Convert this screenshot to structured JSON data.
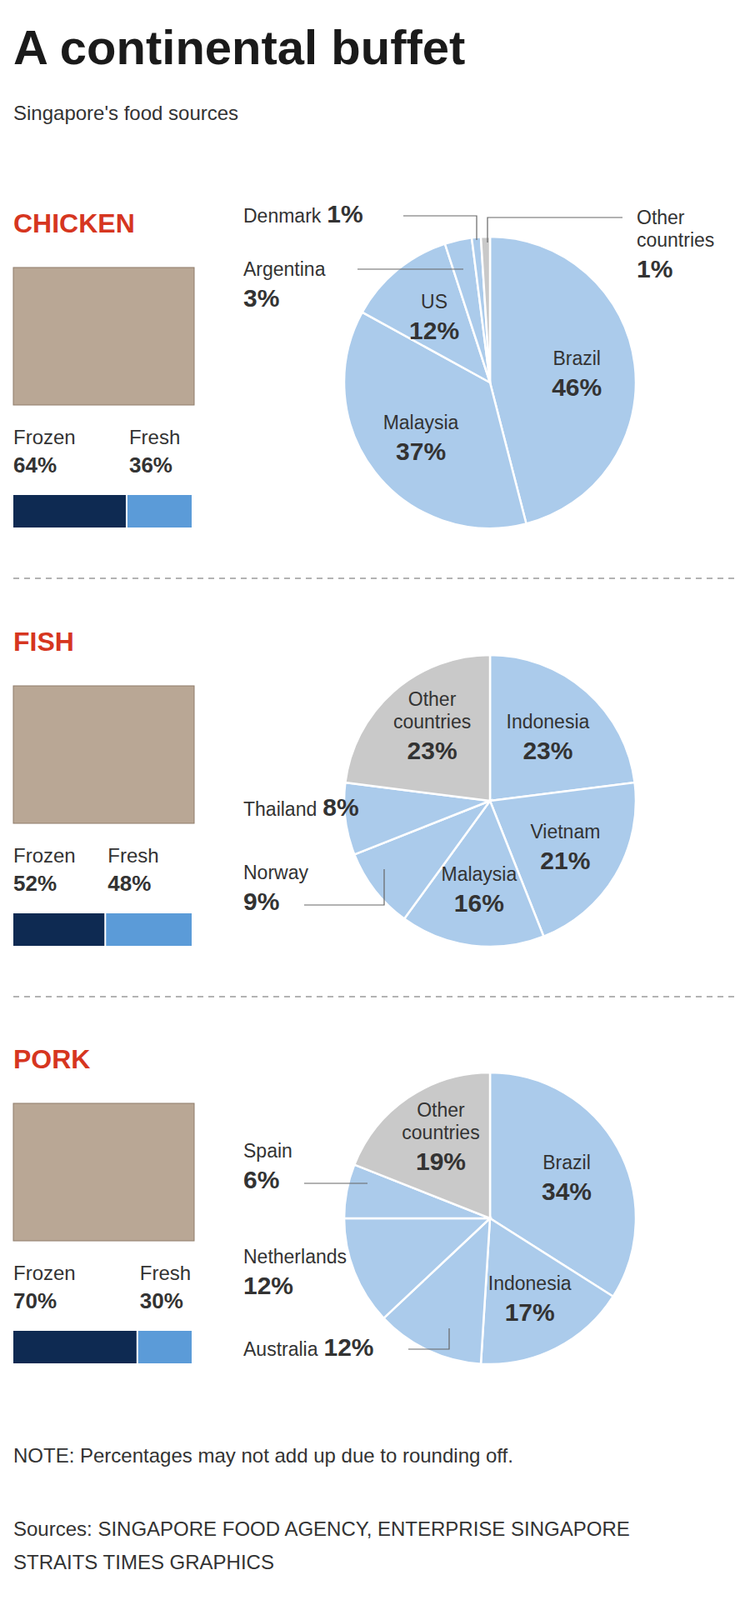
{
  "title": "A continental buffet",
  "subtitle": "Singapore's food sources",
  "chart_data": [
    {
      "type": "pie",
      "title": "CHICKEN",
      "categories": [
        "Brazil",
        "Malaysia",
        "US",
        "Argentina",
        "Denmark",
        "Other countries"
      ],
      "values": [
        46,
        37,
        12,
        3,
        1,
        1
      ],
      "value_labels": [
        "46%",
        "37%",
        "12%",
        "3%",
        "1%",
        "1%"
      ],
      "colors": [
        "#abcbeb",
        "#abcbeb",
        "#abcbeb",
        "#abcbeb",
        "#abcbeb",
        "#c9c9c9"
      ],
      "data_labels": true,
      "frozen_fresh": {
        "categories": [
          "Frozen",
          "Fresh"
        ],
        "values": [
          64,
          36
        ],
        "value_labels": [
          "64%",
          "36%"
        ],
        "colors": [
          "#0e2a52",
          "#5b9bd8"
        ]
      }
    },
    {
      "type": "pie",
      "title": "FISH",
      "categories": [
        "Indonesia",
        "Vietnam",
        "Malaysia",
        "Norway",
        "Thailand",
        "Other countries"
      ],
      "values": [
        23,
        21,
        16,
        9,
        8,
        23
      ],
      "value_labels": [
        "23%",
        "21%",
        "16%",
        "9%",
        "8%",
        "23%"
      ],
      "colors": [
        "#abcbeb",
        "#abcbeb",
        "#abcbeb",
        "#abcbeb",
        "#abcbeb",
        "#c9c9c9"
      ],
      "data_labels": true,
      "frozen_fresh": {
        "categories": [
          "Frozen",
          "Fresh"
        ],
        "values": [
          52,
          48
        ],
        "value_labels": [
          "52%",
          "48%"
        ],
        "colors": [
          "#0e2a52",
          "#5b9bd8"
        ]
      }
    },
    {
      "type": "pie",
      "title": "PORK",
      "categories": [
        "Brazil",
        "Indonesia",
        "Australia",
        "Netherlands",
        "Spain",
        "Other countries"
      ],
      "values": [
        34,
        17,
        12,
        12,
        6,
        19
      ],
      "value_labels": [
        "34%",
        "17%",
        "12%",
        "12%",
        "6%",
        "19%"
      ],
      "colors": [
        "#abcbeb",
        "#abcbeb",
        "#abcbeb",
        "#abcbeb",
        "#abcbeb",
        "#c9c9c9"
      ],
      "data_labels": true,
      "frozen_fresh": {
        "categories": [
          "Frozen",
          "Fresh"
        ],
        "values": [
          70,
          30
        ],
        "value_labels": [
          "70%",
          "30%"
        ],
        "colors": [
          "#0e2a52",
          "#5b9bd8"
        ]
      }
    }
  ],
  "note": "NOTE: Percentages may not add up due to rounding off.",
  "sources": [
    "Sources: SINGAPORE FOOD AGENCY, ENTERPRISE SINGAPORE",
    "STRAITS TIMES GRAPHICS"
  ]
}
